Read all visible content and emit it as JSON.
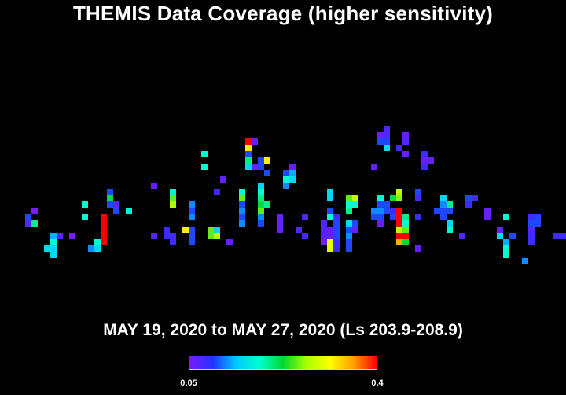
{
  "title": "THEMIS Data Coverage (higher sensitivity)",
  "subtitle": "MAY 19, 2020 to MAY 27, 2020 (Ls 203.9-208.9)",
  "colorbar": {
    "min_label": "0.05",
    "max_label": "0.4",
    "stops": [
      "#7a1bff",
      "#2233ff",
      "#00c8ff",
      "#00ffd0",
      "#00d830",
      "#a8ff00",
      "#ffff00",
      "#ffa000",
      "#ff0000"
    ]
  },
  "chart_data": {
    "type": "heatmap",
    "title": "THEMIS Data Coverage (higher sensitivity)",
    "range": [
      0.05,
      0.4
    ],
    "colormap": [
      "#7a1bff",
      "#2233ff",
      "#00c8ff",
      "#00ffd0",
      "#00d830",
      "#a8ff00",
      "#ffff00",
      "#ffa000",
      "#ff0000"
    ],
    "cells": [
      [
        4,
        34,
        0.1
      ],
      [
        4,
        35,
        0.07
      ],
      [
        5,
        35,
        0.2
      ],
      [
        5,
        33,
        0.05
      ],
      [
        8,
        37,
        0.13
      ],
      [
        8,
        38,
        0.18
      ],
      [
        9,
        37,
        0.07
      ],
      [
        11,
        37,
        0.05
      ],
      [
        7,
        39,
        0.15
      ],
      [
        8,
        40,
        0.15
      ],
      [
        8,
        39,
        0.15
      ],
      [
        13,
        32,
        0.18
      ],
      [
        13,
        34,
        0.18
      ],
      [
        15,
        38,
        0.18
      ],
      [
        14,
        39,
        0.12
      ],
      [
        15,
        39,
        0.15
      ],
      [
        16,
        34,
        0.4
      ],
      [
        16,
        35,
        0.4
      ],
      [
        16,
        36,
        0.4
      ],
      [
        16,
        37,
        0.4
      ],
      [
        16,
        38,
        0.4
      ],
      [
        20,
        33,
        0.17
      ],
      [
        24,
        29,
        0.06
      ],
      [
        24,
        37,
        0.07
      ],
      [
        26,
        36,
        0.08
      ],
      [
        26,
        37,
        0.08
      ],
      [
        27,
        38,
        0.08
      ],
      [
        27,
        37,
        0.08
      ],
      [
        27,
        30,
        0.17
      ],
      [
        27,
        31,
        0.25
      ],
      [
        27,
        32,
        0.27
      ],
      [
        29,
        36,
        0.32
      ],
      [
        30,
        32,
        0.12
      ],
      [
        30,
        33,
        0.1
      ],
      [
        30,
        34,
        0.12
      ],
      [
        30,
        36,
        0.1
      ],
      [
        30,
        37,
        0.1
      ],
      [
        30,
        38,
        0.1
      ],
      [
        32,
        24,
        0.18
      ],
      [
        32,
        26,
        0.18
      ],
      [
        33,
        37,
        0.25
      ],
      [
        33,
        36,
        0.25
      ],
      [
        34,
        37,
        0.28
      ],
      [
        34,
        36,
        0.15
      ],
      [
        34,
        30,
        0.08
      ],
      [
        35,
        28,
        0.06
      ],
      [
        36,
        38,
        0.06
      ],
      [
        38,
        30,
        0.18
      ],
      [
        38,
        31,
        0.25
      ],
      [
        38,
        32,
        0.1
      ],
      [
        38,
        33,
        0.12
      ],
      [
        38,
        34,
        0.1
      ],
      [
        38,
        35,
        0.12
      ],
      [
        39,
        22,
        0.4
      ],
      [
        39,
        23,
        0.32
      ],
      [
        39,
        24,
        0.1
      ],
      [
        39,
        25,
        0.2
      ],
      [
        40,
        22,
        0.06
      ],
      [
        41,
        25,
        0.1
      ],
      [
        41,
        29,
        0.15
      ],
      [
        41,
        30,
        0.18
      ],
      [
        41,
        31,
        0.2
      ],
      [
        41,
        32,
        0.22
      ],
      [
        41,
        33,
        0.25
      ],
      [
        41,
        34,
        0.12
      ],
      [
        41,
        35,
        0.1
      ],
      [
        42,
        25,
        0.32
      ],
      [
        42,
        27,
        0.1
      ],
      [
        42,
        32,
        0.2
      ],
      [
        44,
        34,
        0.06
      ],
      [
        44,
        35,
        0.06
      ],
      [
        44,
        36,
        0.06
      ],
      [
        45,
        27,
        0.1
      ],
      [
        45,
        28,
        0.18
      ],
      [
        45,
        29,
        0.12
      ],
      [
        46,
        26,
        0.06
      ],
      [
        46,
        28,
        0.15
      ],
      [
        46,
        27,
        0.13
      ],
      [
        47,
        36,
        0.07
      ],
      [
        48,
        34,
        0.07
      ],
      [
        48,
        37,
        0.07
      ],
      [
        51,
        35,
        0.07
      ],
      [
        51,
        36,
        0.07
      ],
      [
        51,
        37,
        0.07
      ],
      [
        51,
        38,
        0.05
      ],
      [
        52,
        30,
        0.15
      ],
      [
        52,
        31,
        0.15
      ],
      [
        52,
        33,
        0.1
      ],
      [
        52,
        34,
        0.18
      ],
      [
        52,
        36,
        0.06
      ],
      [
        52,
        37,
        0.06
      ],
      [
        52,
        38,
        0.3
      ],
      [
        52,
        39,
        0.3
      ],
      [
        53,
        34,
        0.08
      ],
      [
        53,
        35,
        0.1
      ],
      [
        53,
        36,
        0.1
      ],
      [
        53,
        37,
        0.1
      ],
      [
        53,
        38,
        0.08
      ],
      [
        53,
        39,
        0.08
      ],
      [
        55,
        31,
        0.25
      ],
      [
        55,
        32,
        0.18
      ],
      [
        55,
        33,
        0.2
      ],
      [
        55,
        35,
        0.15
      ],
      [
        55,
        37,
        0.12
      ],
      [
        55,
        38,
        0.1
      ],
      [
        55,
        39,
        0.1
      ],
      [
        55,
        36,
        0.1
      ],
      [
        56,
        31,
        0.28
      ],
      [
        56,
        32,
        0.18
      ],
      [
        56,
        35,
        0.1
      ],
      [
        56,
        36,
        0.06
      ],
      [
        59,
        26,
        0.06
      ],
      [
        59,
        34,
        0.1
      ],
      [
        59,
        33,
        0.12
      ],
      [
        60,
        21,
        0.06
      ],
      [
        60,
        22,
        0.1
      ],
      [
        61,
        22,
        0.1
      ],
      [
        61,
        23,
        0.15
      ],
      [
        60,
        31,
        0.18
      ],
      [
        60,
        33,
        0.12
      ],
      [
        60,
        34,
        0.1
      ],
      [
        60,
        35,
        0.06
      ],
      [
        60,
        32,
        0.1
      ],
      [
        61,
        20,
        0.07
      ],
      [
        61,
        21,
        0.07
      ],
      [
        61,
        32,
        0.1
      ],
      [
        61,
        33,
        0.1
      ],
      [
        63,
        23,
        0.08
      ],
      [
        64,
        21,
        0.06
      ],
      [
        64,
        22,
        0.07
      ],
      [
        64,
        24,
        0.06
      ],
      [
        63,
        36,
        0.28
      ],
      [
        63,
        37,
        0.4
      ],
      [
        63,
        35,
        0.4
      ],
      [
        63,
        38,
        0.35
      ],
      [
        63,
        30,
        0.28
      ],
      [
        63,
        31,
        0.26
      ],
      [
        63,
        33,
        0.4
      ],
      [
        63,
        34,
        0.4
      ],
      [
        62,
        31,
        0.22
      ],
      [
        62,
        33,
        0.08
      ],
      [
        62,
        34,
        0.1
      ],
      [
        64,
        34,
        0.2
      ],
      [
        64,
        35,
        0.18
      ],
      [
        64,
        36,
        0.25
      ],
      [
        64,
        37,
        0.4
      ],
      [
        64,
        38,
        0.22
      ],
      [
        66,
        30,
        0.1
      ],
      [
        66,
        31,
        0.08
      ],
      [
        66,
        34,
        0.08
      ],
      [
        66,
        39,
        0.06
      ],
      [
        67,
        25,
        0.06
      ],
      [
        67,
        26,
        0.08
      ],
      [
        67,
        24,
        0.08
      ],
      [
        68,
        25,
        0.06
      ],
      [
        69,
        33,
        0.1
      ],
      [
        70,
        31,
        0.15
      ],
      [
        70,
        32,
        0.12
      ],
      [
        70,
        33,
        0.1
      ],
      [
        70,
        34,
        0.1
      ],
      [
        71,
        32,
        0.2
      ],
      [
        71,
        33,
        0.1
      ],
      [
        71,
        35,
        0.15
      ],
      [
        71,
        36,
        0.18
      ],
      [
        73,
        37,
        0.07
      ],
      [
        74,
        31,
        0.1
      ],
      [
        74,
        32,
        0.08
      ],
      [
        75,
        31,
        0.08
      ],
      [
        77,
        33,
        0.06
      ],
      [
        77,
        34,
        0.06
      ],
      [
        79,
        36,
        0.06
      ],
      [
        79,
        37,
        0.15
      ],
      [
        80,
        34,
        0.18
      ],
      [
        80,
        38,
        0.13
      ],
      [
        80,
        39,
        0.18
      ],
      [
        80,
        40,
        0.18
      ],
      [
        81,
        37,
        0.1
      ],
      [
        83,
        41,
        0.12
      ],
      [
        84,
        34,
        0.08
      ],
      [
        84,
        35,
        0.1
      ],
      [
        84,
        36,
        0.07
      ],
      [
        85,
        34,
        0.1
      ],
      [
        85,
        35,
        0.1
      ],
      [
        84,
        37,
        0.08
      ],
      [
        84,
        38,
        0.08
      ],
      [
        88,
        37,
        0.08
      ],
      [
        89,
        37,
        0.08
      ],
      [
        39,
        26,
        0.15
      ],
      [
        40,
        26,
        0.06
      ],
      [
        41,
        26,
        0.1
      ],
      [
        17,
        30,
        0.1
      ],
      [
        17,
        31,
        0.22
      ],
      [
        18,
        32,
        0.07
      ],
      [
        17,
        32,
        0.1
      ],
      [
        18,
        33,
        0.1
      ]
    ]
  }
}
